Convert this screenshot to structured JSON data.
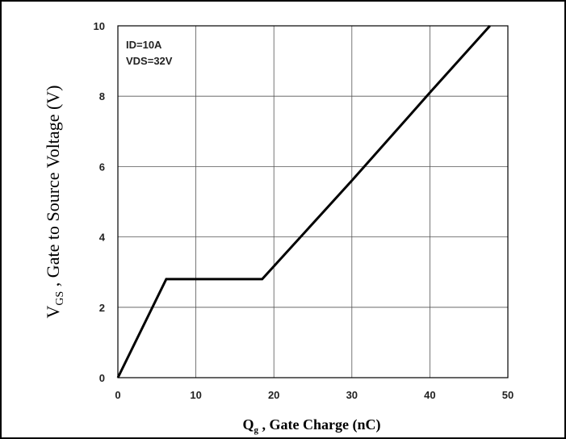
{
  "chart_data": {
    "type": "line",
    "xlabel": {
      "main": "Q",
      "sub": "g",
      "rest": " , Gate Charge (nC)"
    },
    "ylabel": {
      "main": "V",
      "sub": "GS",
      "rest": " , Gate to Source Voltage (V)"
    },
    "xlim": [
      0,
      50
    ],
    "ylim": [
      0,
      10
    ],
    "xticks": [
      0,
      10,
      20,
      30,
      40,
      50
    ],
    "yticks": [
      0,
      2,
      4,
      6,
      8,
      10
    ],
    "xtick_labels": [
      "0",
      "10",
      "20",
      "30",
      "40",
      "50"
    ],
    "ytick_labels": [
      "0",
      "2",
      "4",
      "6",
      "8",
      "10"
    ],
    "grid": true,
    "annotations": [
      "ID=10A",
      "VDS=32V"
    ],
    "series": [
      {
        "x": [
          0,
          6.2,
          18.5,
          30,
          40,
          47.7
        ],
        "y": [
          0,
          2.8,
          2.8,
          5.6,
          8.1,
          10
        ],
        "color": "#000000"
      }
    ]
  }
}
